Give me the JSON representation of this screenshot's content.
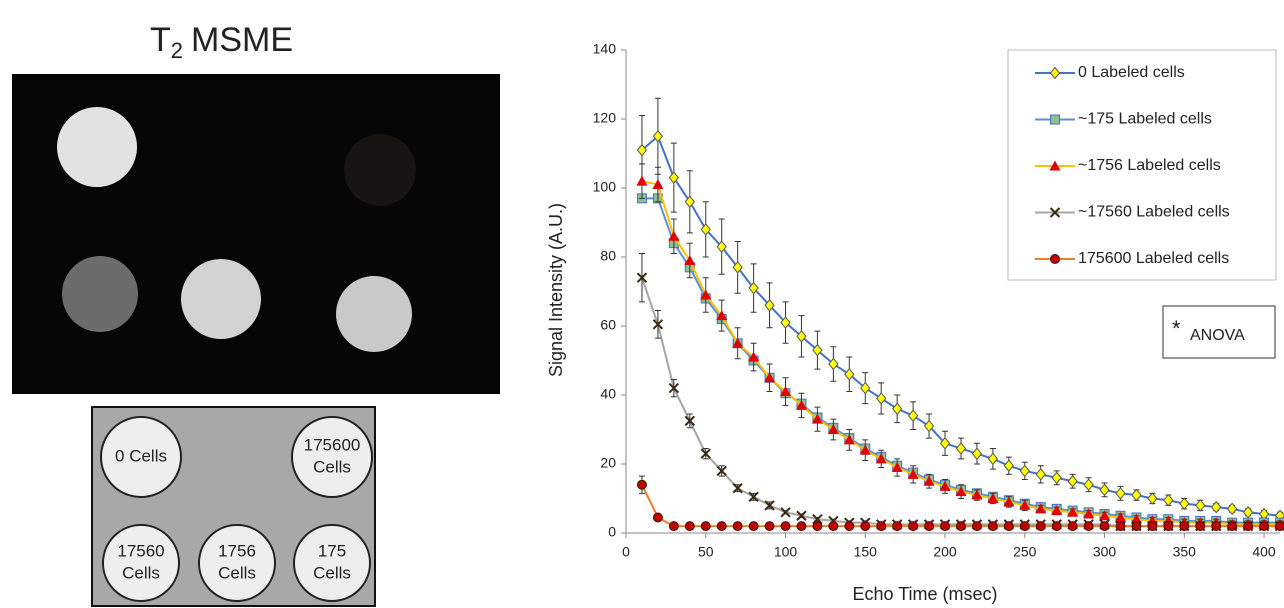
{
  "figure": {
    "title": {
      "main": "T",
      "subscript": "2",
      "rest": "MSME"
    }
  },
  "diagram": {
    "circles": [
      {
        "lines": [
          "0 Cells"
        ]
      },
      {
        "lines": [
          "175600",
          "Cells"
        ]
      },
      {
        "lines": [
          "17560",
          "Cells"
        ]
      },
      {
        "lines": [
          "1756",
          "Cells"
        ]
      },
      {
        "lines": [
          "175",
          "Cells"
        ]
      }
    ]
  },
  "chart_data": {
    "type": "line",
    "x_label": "Echo Time (msec)",
    "y_label": "Signal Intensity (A.U.)",
    "annotation": {
      "star": "*",
      "text": "ANOVA"
    },
    "xlim": [
      0,
      410
    ],
    "xticks": [
      0,
      50,
      100,
      150,
      200,
      250,
      300,
      350,
      400
    ],
    "ylim": [
      0,
      140
    ],
    "yticks": [
      0,
      20,
      40,
      60,
      80,
      100,
      120,
      140
    ],
    "legend": "top-right",
    "x": [
      10,
      20,
      30,
      40,
      50,
      60,
      70,
      80,
      90,
      100,
      110,
      120,
      130,
      140,
      150,
      160,
      170,
      180,
      190,
      200,
      210,
      220,
      230,
      240,
      250,
      260,
      270,
      280,
      290,
      300,
      310,
      320,
      330,
      340,
      350,
      360,
      370,
      380,
      390,
      400,
      410
    ],
    "series": [
      {
        "name": "0 Labeled cells",
        "color": "#4472c4",
        "marker": "diamond",
        "marker_color": "#ffff00",
        "values": [
          111,
          115,
          103,
          96,
          88,
          83,
          77,
          71,
          66,
          61,
          57,
          53,
          49,
          46,
          42,
          39,
          36,
          34,
          31,
          26,
          24.5,
          23,
          21.5,
          19.5,
          18,
          17,
          16,
          15,
          14,
          12.5,
          11.5,
          11,
          10,
          9.5,
          8.5,
          8,
          7.5,
          7,
          6,
          5.5,
          5
        ],
        "errors": [
          10,
          11,
          10,
          9,
          8,
          8,
          7.5,
          7,
          6.5,
          6,
          6,
          5.5,
          5,
          5,
          4.5,
          4.5,
          4,
          4,
          3.5,
          3.5,
          3,
          3,
          3,
          2.5,
          2.5,
          2.5,
          2,
          2,
          2,
          2,
          2,
          1.5,
          1.5,
          1.5,
          1.5,
          1.5,
          1,
          1,
          1,
          1,
          1
        ]
      },
      {
        "name": "~175 Labeled cells",
        "color": "#5b8fd6",
        "marker": "square",
        "marker_color": "#8fbf8f",
        "values": [
          97,
          97,
          84,
          77,
          68,
          62,
          55,
          50,
          45,
          40.5,
          37.5,
          33.5,
          30.5,
          27.5,
          24.5,
          22,
          19.5,
          17.5,
          15.5,
          14,
          12.5,
          11.5,
          10.5,
          9.5,
          8.5,
          7.5,
          7,
          6.5,
          6,
          5.5,
          5,
          4.5,
          4,
          4,
          3.5,
          3.5,
          3.5,
          3,
          3,
          3,
          3
        ]
      },
      {
        "name": "~1756 Labeled cells",
        "color": "#ffc000",
        "marker": "triangle",
        "marker_color": "#e00000",
        "values": [
          102,
          101,
          86,
          79,
          69,
          63,
          55,
          51,
          45,
          41,
          37,
          33,
          30,
          27,
          24,
          21.5,
          19,
          17,
          15,
          13.5,
          12,
          11,
          10,
          9,
          8,
          7,
          6.5,
          6,
          5.5,
          5,
          4.5,
          4,
          3.5,
          3.5,
          3,
          3,
          3,
          2.5,
          2.5,
          2.5,
          2.5
        ],
        "errors": [
          5,
          5,
          5,
          5,
          5,
          4.5,
          4.5,
          4,
          4,
          4,
          3.5,
          3.5,
          3,
          3,
          3,
          2.5,
          2.5,
          2.5,
          2,
          2,
          2,
          1.5,
          1.5,
          1.5,
          1.5,
          1,
          1,
          1,
          1,
          1,
          1,
          1,
          1,
          1,
          1,
          1,
          1,
          1,
          1,
          1,
          1
        ]
      },
      {
        "name": "~17560 Labeled cells",
        "color": "#a5a5a5",
        "marker": "x",
        "marker_color": "#3a2a10",
        "values": [
          74,
          60.5,
          42,
          32.5,
          23,
          18,
          13,
          10.5,
          8,
          6,
          5,
          4,
          3.5,
          3,
          3,
          2.5,
          2.5,
          2.5,
          2.5,
          2.5,
          2.5,
          2.5,
          2.5,
          2.5,
          2.5,
          2.5,
          2.5,
          2.5,
          2.5,
          2.5,
          2,
          2,
          2,
          2,
          2,
          2,
          2,
          2,
          2,
          2,
          2
        ],
        "errors": [
          7,
          4,
          2.5,
          2,
          1.5,
          1.5,
          1,
          1,
          1,
          0.5,
          0.5,
          0.5,
          0.5,
          0.5,
          0.5,
          0.5,
          0.5,
          0.5,
          0.5,
          0.5,
          0.5,
          0.5,
          0.5,
          0.5,
          0.5,
          0.5,
          0.5,
          0.5,
          0.5,
          0.5,
          0.5,
          0.5,
          0.5,
          0.5,
          0.5,
          0.5,
          0.5,
          0.5,
          0.5,
          0.5,
          0.5
        ]
      },
      {
        "name": "175600 Labeled cells",
        "color": "#ed7d31",
        "marker": "circle",
        "marker_color": "#c00000",
        "values": [
          14,
          4.5,
          2,
          2,
          2,
          2,
          2,
          2,
          2,
          2,
          2,
          2,
          2,
          2,
          2,
          2,
          2,
          2,
          2,
          2,
          2,
          2,
          2,
          2,
          2,
          2,
          2,
          2,
          2,
          2,
          2,
          2,
          2,
          2,
          2,
          2,
          2,
          2,
          2,
          2,
          2
        ],
        "errors": [
          2.5,
          0.5,
          0.5,
          0.5,
          0.5,
          0.5,
          0.5,
          0.5,
          0.5,
          0.5,
          0.5,
          0.5,
          0.5,
          0.5,
          0.5,
          0.5,
          0.5,
          0.5,
          0.5,
          0.5,
          0.5,
          0.5,
          0.5,
          0.5,
          0.5,
          0.5,
          0.5,
          0.5,
          0.5,
          0.5,
          0.5,
          0.5,
          0.5,
          0.5,
          0.5,
          0.5,
          0.5,
          0.5,
          0.5,
          0.5,
          0.5
        ]
      }
    ]
  }
}
